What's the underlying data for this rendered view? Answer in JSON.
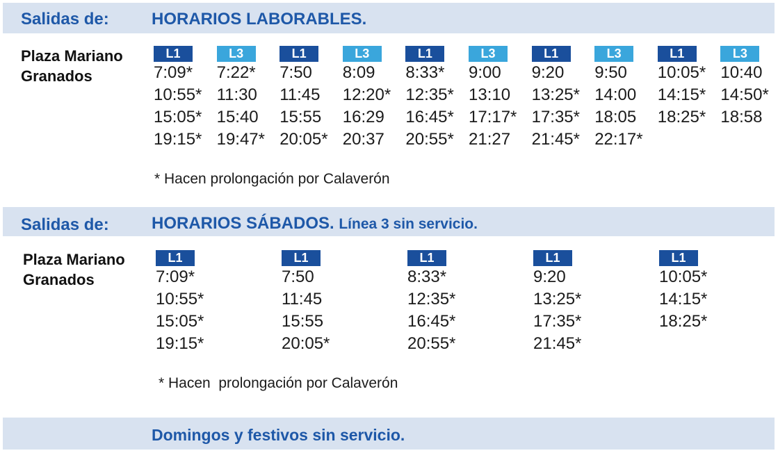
{
  "weekday": {
    "salidas_label": "Salidas de:",
    "title": "HORARIOS LABORABLES.",
    "stop_line1": "Plaza Mariano",
    "stop_line2": "Granados",
    "columns": [
      {
        "line": "L1",
        "times": [
          "7:09*",
          "10:55*",
          "15:05*",
          "19:15*"
        ]
      },
      {
        "line": "L3",
        "times": [
          "7:22*",
          "11:30",
          "15:40",
          "19:47*"
        ]
      },
      {
        "line": "L1",
        "times": [
          "7:50",
          "11:45",
          "15:55",
          "20:05*"
        ]
      },
      {
        "line": "L3",
        "times": [
          "8:09",
          "12:20*",
          "16:29",
          "20:37"
        ]
      },
      {
        "line": "L1",
        "times": [
          "8:33*",
          "12:35*",
          "16:45*",
          "20:55*"
        ]
      },
      {
        "line": "L3",
        "times": [
          "9:00",
          "13:10",
          "17:17*",
          "21:27"
        ]
      },
      {
        "line": "L1",
        "times": [
          "9:20",
          "13:25*",
          "17:35*",
          "21:45*"
        ]
      },
      {
        "line": "L3",
        "times": [
          "9:50",
          "14:00",
          "18:05",
          "22:17*"
        ]
      },
      {
        "line": "L1",
        "times": [
          "10:05*",
          "14:15*",
          "18:25*"
        ]
      },
      {
        "line": "L3",
        "times": [
          "10:40",
          "14:50*",
          "18:58"
        ]
      }
    ],
    "note": "* Hacen prolongación por Calaverón"
  },
  "saturday": {
    "salidas_label": "Salidas de:",
    "title": "HORARIOS SÁBADOS.",
    "subtitle": "Línea 3 sin servicio.",
    "stop_line1": "Plaza Mariano",
    "stop_line2": "Granados",
    "columns": [
      {
        "line": "L1",
        "times": [
          "7:09*",
          "10:55*",
          "15:05*",
          "19:15*"
        ]
      },
      {
        "line": "L1",
        "times": [
          "7:50",
          "11:45",
          "15:55",
          "20:05*"
        ]
      },
      {
        "line": "L1",
        "times": [
          "8:33*",
          "12:35*",
          "16:45*",
          "20:55*"
        ]
      },
      {
        "line": "L1",
        "times": [
          "9:20",
          "13:25*",
          "17:35*",
          "21:45*"
        ]
      },
      {
        "line": "L1",
        "times": [
          "10:05*",
          "14:15*",
          "18:25*"
        ]
      }
    ],
    "note": "* Hacen  prolongación por Calaverón"
  },
  "sunday": {
    "title": "Domingos y festivos sin servicio."
  },
  "colors": {
    "band_bg": "#d8e2f0",
    "title_blue": "#1e58a8",
    "l1_badge": "#1a4f9c",
    "l3_badge": "#3aa6dc"
  }
}
